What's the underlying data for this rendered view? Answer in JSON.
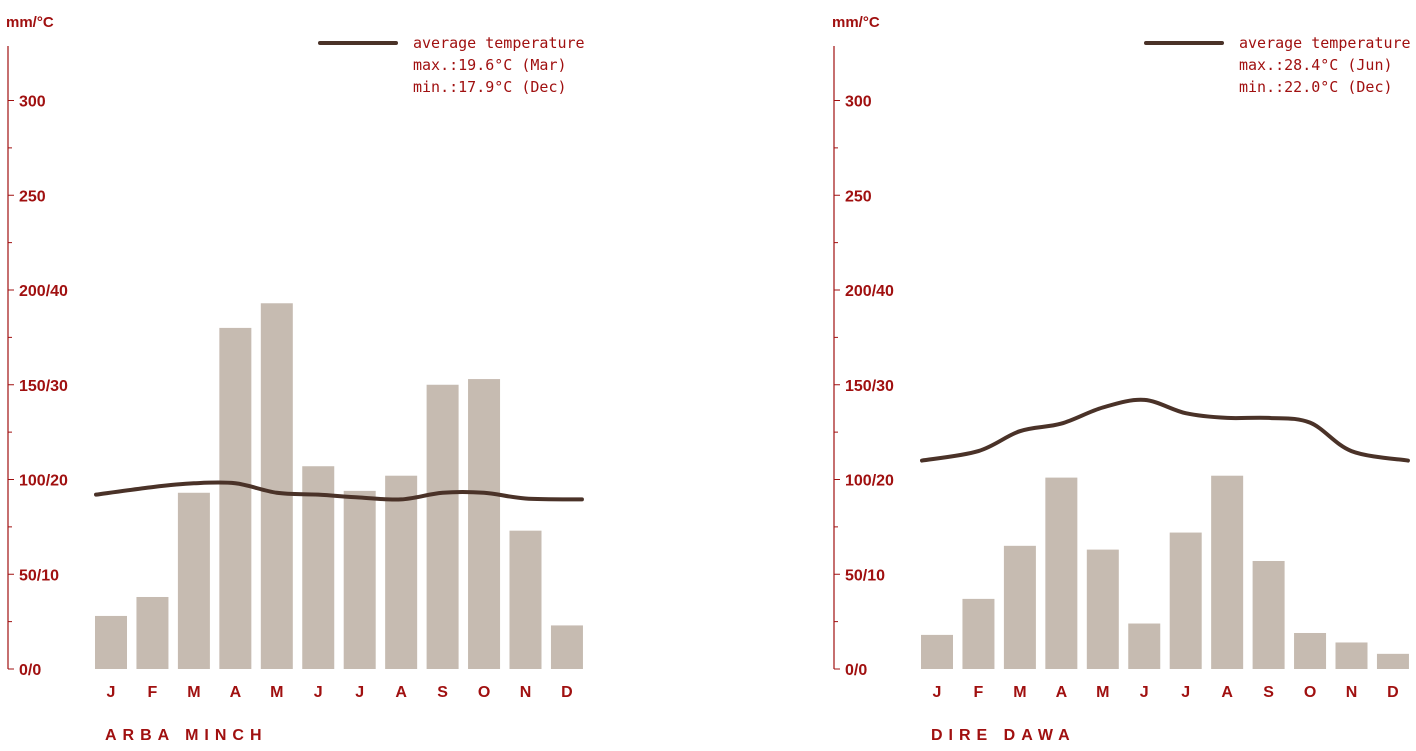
{
  "colors": {
    "axis": "#a01010",
    "bar": "#c6bbb1",
    "line": "#4a3228",
    "text": "#a01010"
  },
  "chart_data": [
    {
      "type": "bar",
      "ylabel": "mm/°C",
      "yticks": [
        "0/0",
        "50/10",
        "100/20",
        "150/30",
        "200/40",
        "250",
        "300"
      ],
      "ylim": [
        0,
        330
      ],
      "categories": [
        "J",
        "F",
        "M",
        "A",
        "M",
        "J",
        "J",
        "A",
        "S",
        "O",
        "N",
        "D"
      ],
      "series": [
        {
          "values": [
            28,
            38,
            93,
            180,
            193,
            107,
            94,
            102,
            150,
            153,
            73,
            23
          ]
        },
        {
          "name": "average temperature",
          "type": "line",
          "values": [
            18.4,
            19.2,
            19.6,
            19.6,
            18.6,
            18.4,
            18.1,
            17.9,
            18.6,
            18.6,
            18.0,
            17.9
          ]
        }
      ],
      "legend": {
        "label": "average temperature",
        "max": "max.:19.6°C (Mar)",
        "min": "min.:17.9°C (Dec)"
      },
      "title": "ARBA MINCH"
    },
    {
      "type": "bar",
      "ylabel": "mm/°C",
      "yticks": [
        "0/0",
        "50/10",
        "100/20",
        "150/30",
        "200/40",
        "250",
        "300"
      ],
      "ylim": [
        0,
        330
      ],
      "categories": [
        "J",
        "F",
        "M",
        "A",
        "M",
        "J",
        "J",
        "A",
        "S",
        "O",
        "N",
        "D"
      ],
      "series": [
        {
          "values": [
            18,
            37,
            65,
            101,
            63,
            24,
            72,
            102,
            57,
            19,
            14,
            8
          ]
        },
        {
          "name": "average temperature",
          "type": "line",
          "values": [
            22.0,
            23.0,
            25.1,
            25.9,
            27.6,
            28.4,
            27.0,
            26.5,
            26.5,
            26.0,
            23.0,
            22.0
          ]
        }
      ],
      "legend": {
        "label": "average temperature",
        "max": "max.:28.4°C (Jun)",
        "min": "min.:22.0°C (Dec)"
      },
      "title": "DIRE DAWA"
    }
  ]
}
